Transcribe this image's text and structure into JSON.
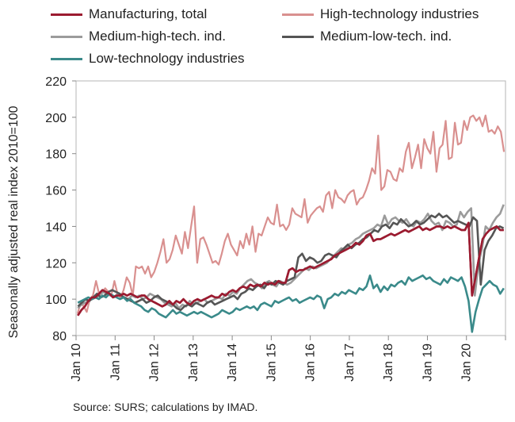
{
  "chart_data": {
    "type": "line",
    "title": "",
    "xlabel": "",
    "ylabel": "Seasonally adjusted real index 2010=100",
    "ylim": [
      80,
      220
    ],
    "yticks": [
      80,
      100,
      120,
      140,
      160,
      180,
      200,
      220
    ],
    "x_start": "Jan 10",
    "x_end": "Dec 20",
    "x_ticklabels": [
      "Jan 10",
      "Jan 11",
      "Jan 12",
      "Jan 13",
      "Jan 14",
      "Jan 15",
      "Jan 16",
      "Jan 17",
      "Jan 18",
      "Jan 19",
      "Jan 20"
    ],
    "grid": false,
    "legend_position": "top",
    "series": [
      {
        "name": "Manufacturing, total",
        "color": "#9b1b30",
        "values": [
          91,
          94,
          96,
          99,
          101,
          101,
          103,
          105,
          104,
          103,
          101,
          102,
          102,
          103,
          102,
          103,
          102,
          101,
          102,
          102,
          100,
          99,
          98,
          97,
          96,
          97,
          99,
          97,
          99,
          98,
          100,
          98,
          97,
          99,
          100,
          99,
          100,
          101,
          102,
          101,
          101,
          103,
          102,
          104,
          105,
          104,
          106,
          107,
          106,
          108,
          107,
          108,
          107,
          109,
          108,
          109,
          108,
          110,
          109,
          109,
          116,
          117,
          115,
          116,
          116,
          117,
          118,
          117,
          118,
          119,
          120,
          121,
          122,
          124,
          125,
          126,
          127,
          128,
          129,
          131,
          130,
          132,
          135,
          136,
          132,
          133,
          133,
          134,
          135,
          136,
          135,
          136,
          137,
          138,
          137,
          138,
          139,
          140,
          138,
          139,
          138,
          139,
          140,
          140,
          139,
          140,
          139,
          140,
          139,
          138,
          138,
          142,
          102,
          112,
          123,
          133,
          136,
          138,
          139,
          140,
          138,
          138
        ]
      },
      {
        "name": "High-technology industries",
        "color": "#d9908f",
        "values": [
          92,
          98,
          96,
          93,
          100,
          102,
          110,
          103,
          104,
          106,
          104,
          102,
          110,
          103,
          101,
          105,
          112,
          109,
          102,
          118,
          117,
          118,
          114,
          118,
          112,
          115,
          120,
          126,
          133,
          120,
          122,
          127,
          135,
          130,
          125,
          137,
          128,
          140,
          151,
          120,
          133,
          134,
          130,
          125,
          120,
          121,
          119,
          125,
          132,
          136,
          130,
          127,
          124,
          132,
          128,
          136,
          130,
          140,
          126,
          136,
          135,
          140,
          145,
          142,
          141,
          152,
          140,
          141,
          138,
          141,
          150,
          147,
          146,
          145,
          155,
          142,
          146,
          148,
          150,
          151,
          148,
          157,
          159,
          150,
          160,
          156,
          155,
          153,
          157,
          159,
          160,
          152,
          155,
          156,
          160,
          165,
          172,
          169,
          190,
          160,
          162,
          171,
          170,
          166,
          165,
          172,
          170,
          181,
          186,
          172,
          178,
          185,
          172,
          188,
          183,
          180,
          192,
          170,
          183,
          185,
          198,
          177,
          178,
          197,
          185,
          186,
          198,
          193,
          200,
          201,
          198,
          200,
          195,
          201,
          192,
          193,
          191,
          195,
          192,
          181
        ]
      },
      {
        "name": "Medium-high-tech. ind.",
        "color": "#9b9b9b",
        "values": [
          95,
          97,
          98,
          99,
          100,
          101,
          102,
          104,
          103,
          102,
          101,
          103,
          102,
          101,
          100,
          102,
          101,
          102,
          100,
          101,
          103,
          102,
          101,
          100,
          98,
          97,
          96,
          98,
          95,
          97,
          96,
          99,
          97,
          98,
          99,
          100,
          98,
          99,
          100,
          101,
          100,
          103,
          102,
          104,
          103,
          106,
          108,
          110,
          111,
          109,
          108,
          106,
          109,
          110,
          108,
          107,
          110,
          109,
          108,
          109,
          111,
          113,
          115,
          117,
          116,
          118,
          117,
          118,
          119,
          120,
          122,
          124,
          126,
          128,
          127,
          130,
          131,
          133,
          134,
          136,
          137,
          138,
          139,
          141,
          140,
          146,
          141,
          144,
          145,
          143,
          142,
          144,
          141,
          140,
          143,
          142,
          144,
          147,
          143,
          141,
          142,
          138,
          143,
          142,
          140,
          141,
          148,
          145,
          148,
          150,
          102,
          119,
          128,
          140,
          138,
          142,
          145,
          147,
          152
        ]
      },
      {
        "name": "Medium-low-tech. ind.",
        "color": "#555555",
        "values": [
          96,
          98,
          100,
          99,
          101,
          103,
          101,
          102,
          104,
          105,
          104,
          103,
          101,
          100,
          99,
          98,
          99,
          100,
          98,
          99,
          101,
          102,
          100,
          99,
          98,
          97,
          95,
          94,
          96,
          97,
          96,
          98,
          97,
          96,
          98,
          99,
          97,
          98,
          99,
          100,
          101,
          102,
          100,
          103,
          104,
          106,
          105,
          107,
          108,
          106,
          109,
          108,
          110,
          109,
          108,
          110,
          111,
          112,
          123,
          125,
          121,
          123,
          122,
          120,
          121,
          124,
          125,
          124,
          123,
          126,
          128,
          130,
          128,
          130,
          131,
          133,
          134,
          136,
          138,
          137,
          140,
          141,
          139,
          142,
          141,
          144,
          142,
          140,
          141,
          143,
          141,
          142,
          144,
          146,
          145,
          147,
          145,
          146,
          144,
          142,
          143,
          142,
          141,
          140,
          145,
          143,
          108,
          127,
          132,
          135,
          139,
          140,
          139
        ]
      },
      {
        "name": "Low-technology industries",
        "color": "#3a8a8a",
        "values": [
          98,
          99,
          100,
          101,
          100,
          101,
          100,
          102,
          101,
          103,
          102,
          101,
          100,
          101,
          99,
          100,
          98,
          97,
          96,
          94,
          93,
          95,
          94,
          92,
          91,
          90,
          92,
          94,
          92,
          93,
          92,
          91,
          92,
          93,
          92,
          93,
          92,
          91,
          90,
          91,
          92,
          94,
          93,
          92,
          93,
          95,
          94,
          95,
          96,
          95,
          96,
          94,
          97,
          98,
          97,
          96,
          99,
          98,
          99,
          100,
          101,
          99,
          100,
          98,
          99,
          100,
          101,
          100,
          102,
          101,
          95,
          100,
          101,
          103,
          102,
          104,
          103,
          105,
          104,
          103,
          106,
          105,
          107,
          113,
          106,
          108,
          104,
          107,
          105,
          108,
          107,
          109,
          110,
          108,
          112,
          110,
          111,
          112,
          113,
          111,
          112,
          110,
          109,
          108,
          111,
          109,
          112,
          111,
          110,
          112,
          107,
          99,
          82,
          93,
          100,
          106,
          108,
          110,
          108,
          107,
          103,
          106
        ]
      }
    ]
  },
  "source": "Source: SURS; calculations by IMAD."
}
